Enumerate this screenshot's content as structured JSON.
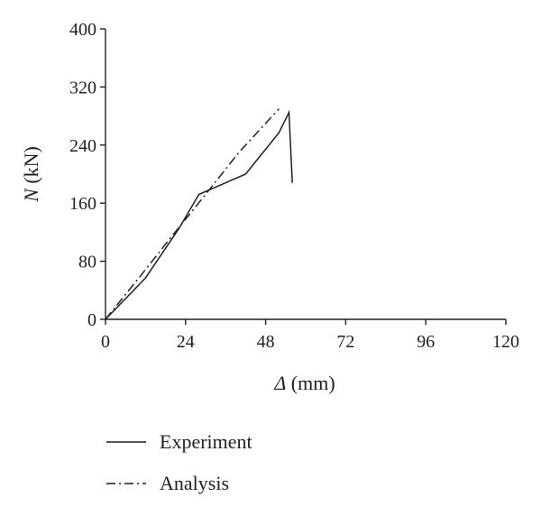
{
  "chart_data": {
    "type": "line",
    "title": "",
    "xlabel": {
      "symbol": "Δ",
      "unit": " (mm)"
    },
    "ylabel": {
      "symbol": "N",
      "unit": " (kN)"
    },
    "xlim": [
      0,
      120
    ],
    "ylim": [
      0,
      400
    ],
    "xticks": [
      "0",
      "24",
      "48",
      "72",
      "96",
      "120"
    ],
    "yticks": [
      "0",
      "80",
      "160",
      "240",
      "320",
      "400"
    ],
    "grid": false,
    "legend_position": "bottom",
    "series": [
      {
        "name": "Experiment",
        "style": "solid",
        "color": "#231f20",
        "x": [
          0,
          12,
          22,
          28,
          42,
          52,
          55,
          56
        ],
        "y": [
          0,
          57,
          125,
          172,
          200,
          257,
          285,
          188
        ]
      },
      {
        "name": "Analysis",
        "style": "dashdot",
        "color": "#231f20",
        "x": [
          0,
          10,
          20,
          30,
          40,
          52
        ],
        "y": [
          0,
          57,
          115,
          172,
          230,
          290
        ]
      }
    ]
  }
}
